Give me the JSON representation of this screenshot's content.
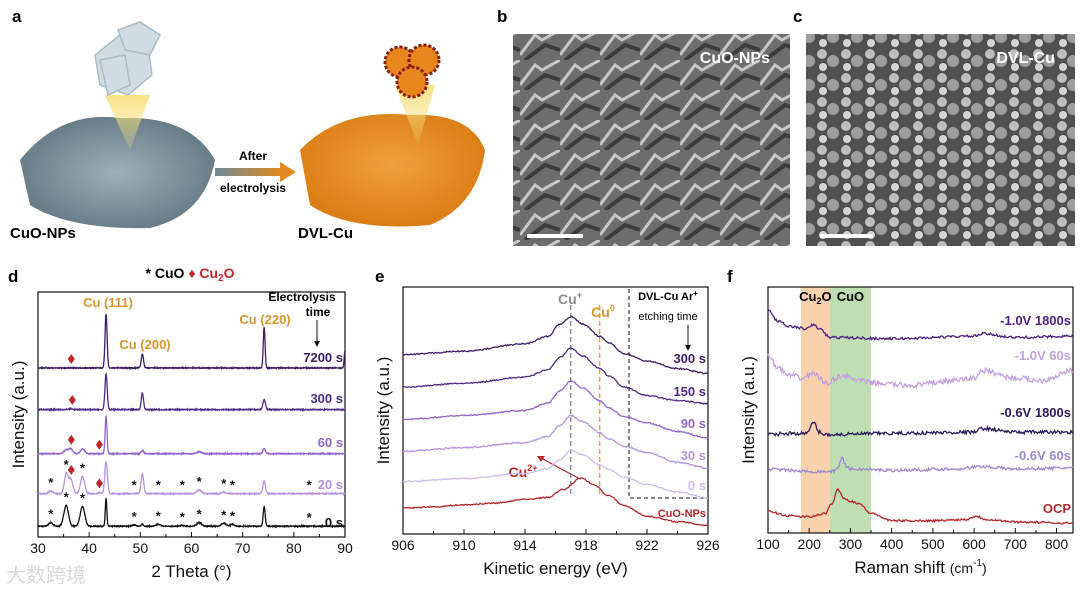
{
  "panels": {
    "a": {
      "label": "a",
      "left_name": "CuO-NPs",
      "right_name": "DVL-Cu",
      "arrow_top": "After",
      "arrow_bottom": "electrolysis"
    },
    "b": {
      "label": "b",
      "name": "CuO-NPs"
    },
    "c": {
      "label": "c",
      "name": "DVL-Cu"
    }
  },
  "watermark": "大数跨境",
  "colors": {
    "black": "#111111",
    "dark_purple": "#3a1f66",
    "purple": "#4e2d86",
    "mid_purple": "#9266cc",
    "light_purple": "#b394dd",
    "pale_purple": "#cdbde9",
    "red": "#b3262a",
    "orange": "#d9962e",
    "gray": "#8a8a8a",
    "cu2o_band": "#f9d2ad",
    "cuo_band": "#bfdfb3"
  },
  "chart_data": [
    {
      "panel": "d",
      "type": "line",
      "title": "",
      "legend": {
        "star": "*",
        "cuo": "CuO",
        "diamond": "♦",
        "cu2o_main": "Cu",
        "cu2o_sub": "2",
        "cu2o_end": "O"
      },
      "xlabel": "2 Theta (°)",
      "ylabel": "Intensity (a.u.)",
      "xlim": [
        30,
        90
      ],
      "ylim": [
        0,
        100
      ],
      "xticks": [
        "30",
        "40",
        "50",
        "60",
        "70",
        "80",
        "90"
      ],
      "annotations": {
        "cu111": "Cu (111)",
        "cu200": "Cu (200)",
        "cu220": "Cu (220)",
        "time_title1": "Electrolysis",
        "time_title2": "time"
      },
      "series": [
        {
          "name": "0 s",
          "color": "#111111",
          "baseline": 4.4,
          "peaks": [
            [
              32.5,
              1.5,
              0.4
            ],
            [
              35.5,
              8.5,
              0.45
            ],
            [
              38.7,
              8,
              0.45
            ],
            [
              43.3,
              11.4,
              0.15
            ],
            [
              48.8,
              0.5,
              0.4
            ],
            [
              50.4,
              0.8,
              0.2
            ],
            [
              53.5,
              0.8,
              0.4
            ],
            [
              58.2,
              0.3,
              0.4
            ],
            [
              61.5,
              1.5,
              0.45
            ],
            [
              66.3,
              1.2,
              0.45
            ],
            [
              68,
              0.8,
              0.4
            ],
            [
              74.2,
              7.9,
              0.2
            ]
          ]
        },
        {
          "name": "20 s",
          "color": "#b394dd",
          "baseline": 17.7,
          "peaks": [
            [
              32.5,
              1,
              0.4
            ],
            [
              35.5,
              8,
              0.35
            ],
            [
              36.4,
              6,
              0.4
            ],
            [
              38.7,
              7,
              0.4
            ],
            [
              42,
              0.5,
              0.3
            ],
            [
              43.3,
              13,
              0.25
            ],
            [
              50.4,
              8,
              0.25
            ],
            [
              61.5,
              1.5,
              0.45
            ],
            [
              66.3,
              0.6,
              0.4
            ],
            [
              74.2,
              5,
              0.25
            ]
          ]
        },
        {
          "name": "60 s",
          "color": "#9266cc",
          "baseline": 34,
          "peaks": [
            [
              35.5,
              1.5,
              0.4
            ],
            [
              36.4,
              2,
              0.4
            ],
            [
              38.7,
              2,
              0.4
            ],
            [
              43.3,
              15.4,
              0.18
            ],
            [
              50.4,
              1.2,
              0.25
            ],
            [
              61.5,
              0.8,
              0.45
            ],
            [
              74.2,
              2,
              0.25
            ]
          ]
        },
        {
          "name": "300 s",
          "color": "#4e2d86",
          "baseline": 52,
          "peaks": [
            [
              36.4,
              0.3,
              0.4
            ],
            [
              43.3,
              14.5,
              0.22
            ],
            [
              50.4,
              6.8,
              0.22
            ],
            [
              74.2,
              4,
              0.25
            ]
          ]
        },
        {
          "name": "7200 s",
          "color": "#3a1f66",
          "baseline": 69,
          "peaks": [
            [
              43.3,
              22,
              0.2
            ],
            [
              50.4,
              5.7,
              0.22
            ],
            [
              74.2,
              16.5,
              0.18
            ],
            [
              90,
              7,
              0.15
            ]
          ]
        }
      ],
      "markers": [
        {
          "series": 0,
          "symbol": "star",
          "x": [
            32.5,
            35.5,
            38.7,
            48.8,
            53.5,
            58.2,
            61.5,
            66.3,
            68,
            83
          ]
        },
        {
          "series": 1,
          "symbol": "star",
          "x": [
            32.5,
            35.5,
            38.7,
            48.8,
            53.5,
            58.2,
            61.5,
            66.3,
            68,
            83
          ]
        },
        {
          "series": 1,
          "symbol": "diamond",
          "x": [
            36.5,
            42
          ]
        },
        {
          "series": 2,
          "symbol": "diamond",
          "x": [
            36.5,
            42
          ]
        },
        {
          "series": 3,
          "symbol": "diamond",
          "x": [
            36.7
          ]
        },
        {
          "series": 4,
          "symbol": "diamond",
          "x": [
            36.5
          ]
        }
      ]
    },
    {
      "panel": "e",
      "type": "line",
      "xlabel": "Kinetic energy (eV)",
      "ylabel": "Intensity (a.u.)",
      "xlim": [
        906,
        926
      ],
      "ylim": [
        0,
        100
      ],
      "xticks": [
        "906",
        "910",
        "914",
        "918",
        "922",
        "926"
      ],
      "annotations": {
        "cu_plus": "Cu",
        "cu_plus_sup": "+",
        "cu_zero": "Cu",
        "cu_zero_sup": "0",
        "cu2plus": "Cu",
        "cu2plus_sup": "2+",
        "box_title1": "DVL-Cu Ar",
        "box_title1_sup": "+",
        "box_title2": "etching time"
      },
      "reference_lines": [
        {
          "name": "Cu+",
          "x": 917,
          "color": "#777777"
        },
        {
          "name": "Cu0",
          "x": 918.9,
          "color": "#d9962e"
        }
      ],
      "series": [
        {
          "name": "CuO-NPs",
          "color": "#b3262a",
          "points": [
            [
              906,
              10.5
            ],
            [
              908,
              11
            ],
            [
              910,
              11.8
            ],
            [
              912,
              12.5
            ],
            [
              914,
              14
            ],
            [
              915.5,
              14.8
            ],
            [
              916.5,
              18
            ],
            [
              917.7,
              22.7
            ],
            [
              918.5,
              20
            ],
            [
              919.5,
              15.5
            ],
            [
              920.5,
              11.5
            ],
            [
              922,
              7.2
            ],
            [
              924,
              5
            ],
            [
              926,
              3.5
            ]
          ]
        },
        {
          "name": "0 s",
          "color": "#cdbde9",
          "points": [
            [
              906,
              21.3
            ],
            [
              910,
              22.5
            ],
            [
              914,
              24.5
            ],
            [
              915.5,
              26.5
            ],
            [
              916.3,
              30
            ],
            [
              917,
              34
            ],
            [
              917.8,
              32
            ],
            [
              918.9,
              28
            ],
            [
              919.5,
              26
            ],
            [
              920.5,
              23
            ],
            [
              922,
              20
            ],
            [
              924,
              17
            ],
            [
              926,
              14.6
            ]
          ]
        },
        {
          "name": "30 s",
          "color": "#b394dd",
          "points": [
            [
              906,
              33.5
            ],
            [
              910,
              35
            ],
            [
              914,
              37
            ],
            [
              915.5,
              39.5
            ],
            [
              916.3,
              44
            ],
            [
              917,
              48
            ],
            [
              917.8,
              45.5
            ],
            [
              918.9,
              41
            ],
            [
              919.5,
              38.5
            ],
            [
              920.5,
              35.5
            ],
            [
              922,
              33
            ],
            [
              924,
              29
            ],
            [
              926,
              26.7
            ]
          ]
        },
        {
          "name": "90 s",
          "color": "#9266cc",
          "points": [
            [
              906,
              46.3
            ],
            [
              910,
              48
            ],
            [
              914,
              50
            ],
            [
              915.5,
              53
            ],
            [
              916.3,
              58
            ],
            [
              917,
              62
            ],
            [
              917.8,
              59
            ],
            [
              918.9,
              54
            ],
            [
              919.5,
              51
            ],
            [
              920.5,
              47.5
            ],
            [
              922,
              45
            ],
            [
              924,
              41.5
            ],
            [
              926,
              38.9
            ]
          ]
        },
        {
          "name": "150 s",
          "color": "#4e2d86",
          "points": [
            [
              906,
              59.5
            ],
            [
              910,
              61
            ],
            [
              914,
              63.5
            ],
            [
              915.5,
              66.5
            ],
            [
              916.3,
              71.5
            ],
            [
              917,
              75.3
            ],
            [
              917.8,
              72
            ],
            [
              918.9,
              67
            ],
            [
              919.5,
              64
            ],
            [
              920.5,
              59.5
            ],
            [
              922,
              56
            ],
            [
              924,
              54
            ],
            [
              926,
              52.8
            ]
          ]
        },
        {
          "name": "300 s",
          "color": "#3a1f66",
          "points": [
            [
              906,
              72.6
            ],
            [
              910,
              74
            ],
            [
              914,
              77
            ],
            [
              915.5,
              80
            ],
            [
              916.3,
              85
            ],
            [
              917,
              88
            ],
            [
              917.8,
              85
            ],
            [
              918.9,
              80
            ],
            [
              919.5,
              77.5
            ],
            [
              920.5,
              73
            ],
            [
              922,
              70
            ],
            [
              924,
              67
            ],
            [
              926,
              65
            ]
          ]
        }
      ]
    },
    {
      "panel": "f",
      "type": "line",
      "xlabel": "Raman shift",
      "xlabel_unit": "(cm",
      "xlabel_sup": "-1",
      "xlabel_end": ")",
      "ylabel": "Intensity (a.u.)",
      "xlim": [
        100,
        840
      ],
      "ylim": [
        0,
        100
      ],
      "xticks": [
        "100",
        "200",
        "300",
        "400",
        "500",
        "600",
        "700",
        "800"
      ],
      "bands": [
        {
          "name": "Cu2O",
          "range": [
            180,
            250
          ],
          "color": "#f9d2ad"
        },
        {
          "name": "CuO",
          "range": [
            250,
            350
          ],
          "color": "#bfdfb3"
        }
      ],
      "band_labels": {
        "cu2o_main": "Cu",
        "cu2o_sub": "2",
        "cu2o_end": "O",
        "cuo": "CuO"
      },
      "series": [
        {
          "name": "OCP",
          "color": "#b3262a",
          "noise": 0.4,
          "points": [
            [
              100,
              8.8
            ],
            [
              150,
              7
            ],
            [
              200,
              6.5
            ],
            [
              240,
              8
            ],
            [
              255,
              12
            ],
            [
              270,
              17.9
            ],
            [
              285,
              14
            ],
            [
              300,
              13
            ],
            [
              320,
              12
            ],
            [
              350,
              8
            ],
            [
              400,
              5
            ],
            [
              500,
              5
            ],
            [
              580,
              5.5
            ],
            [
              605,
              6.8
            ],
            [
              630,
              5.5
            ],
            [
              700,
              4.5
            ],
            [
              840,
              4
            ]
          ]
        },
        {
          "name": "-0.6V 60s",
          "color": "#9d8ad0",
          "noise": 0.6,
          "points": [
            [
              100,
              26
            ],
            [
              200,
              25
            ],
            [
              260,
              25
            ],
            [
              270,
              27
            ],
            [
              280,
              30.5
            ],
            [
              290,
              27
            ],
            [
              300,
              26
            ],
            [
              400,
              25.5
            ],
            [
              550,
              26
            ],
            [
              620,
              27
            ],
            [
              700,
              26
            ],
            [
              840,
              26.5
            ]
          ]
        },
        {
          "name": "-0.6V 1800s",
          "color": "#2a1a5e",
          "noise": 0.7,
          "points": [
            [
              100,
              40
            ],
            [
              150,
              40.5
            ],
            [
              195,
              40.5
            ],
            [
              210,
              45
            ],
            [
              225,
              41
            ],
            [
              240,
              40
            ],
            [
              400,
              40.5
            ],
            [
              600,
              41
            ],
            [
              620,
              42.5
            ],
            [
              700,
              41
            ],
            [
              840,
              41
            ]
          ]
        },
        {
          "name": "-1.0V 60s",
          "color": "#c4a0e2",
          "noise": 1.1,
          "points": [
            [
              100,
              72
            ],
            [
              125,
              67
            ],
            [
              150,
              64
            ],
            [
              185,
              63
            ],
            [
              210,
              65
            ],
            [
              240,
              61
            ],
            [
              280,
              64
            ],
            [
              320,
              62
            ],
            [
              350,
              61
            ],
            [
              450,
              60
            ],
            [
              550,
              62
            ],
            [
              600,
              63
            ],
            [
              620,
              66
            ],
            [
              700,
              63
            ],
            [
              760,
              62
            ],
            [
              840,
              66
            ]
          ]
        },
        {
          "name": "-1.0V 1800s",
          "color": "#4a2080",
          "noise": 0.5,
          "points": [
            [
              100,
              90.6
            ],
            [
              125,
              86
            ],
            [
              150,
              84
            ],
            [
              195,
              83
            ],
            [
              210,
              84.7
            ],
            [
              225,
              83
            ],
            [
              250,
              79.5
            ],
            [
              400,
              79
            ],
            [
              600,
              80
            ],
            [
              620,
              81
            ],
            [
              700,
              79.5
            ],
            [
              840,
              80
            ]
          ]
        }
      ]
    }
  ]
}
